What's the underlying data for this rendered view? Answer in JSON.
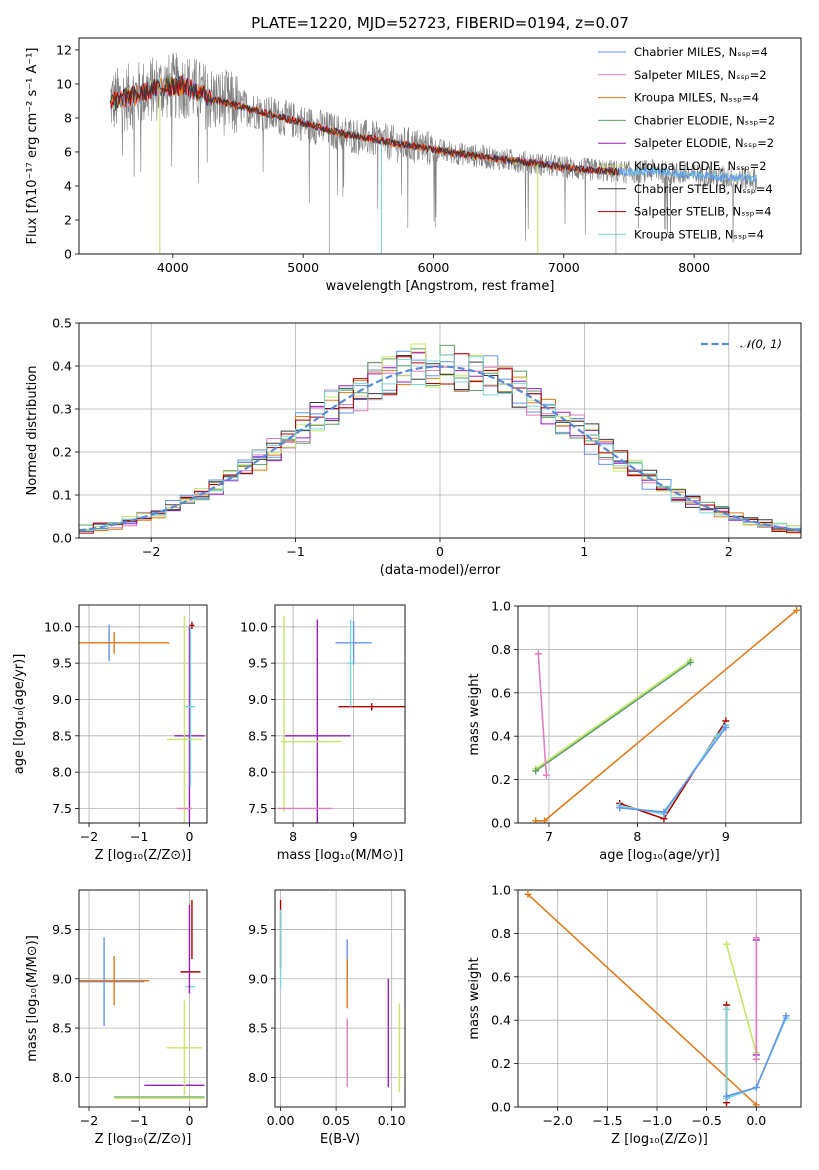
{
  "colors": {
    "chabrier_miles": "#6495ed",
    "salpeter_miles": "#e17fc0",
    "kroupa_miles": "#e07b1a",
    "chabrier_elodie": "#5aa066",
    "salpeter_elodie": "#9a1bc0",
    "kroupa_elodie": "#c8e66a",
    "chabrier_stelib": "#3a3a3a",
    "salpeter_stelib": "#b00000",
    "kroupa_stelib": "#78d8d8",
    "data": "#808080",
    "normal": "#5b8ad6"
  },
  "chart_data": [
    {
      "id": "spectrum",
      "type": "line",
      "title": "PLATE=1220, MJD=52723, FIBERID=0194, z=0.07",
      "xlabel": "wavelength [Angstrom, rest frame]",
      "ylabel": "Flux [fλ10⁻¹⁷ erg cm⁻² s⁻¹ A⁻¹]",
      "xlim": [
        3280,
        8820
      ],
      "ylim": [
        0,
        12.7
      ],
      "xticks": [
        4000,
        5000,
        6000,
        7000,
        8000
      ],
      "yticks": [
        0,
        2,
        4,
        6,
        8,
        10,
        12
      ],
      "grid": false,
      "legend": "top-right",
      "legend_entries": [
        "Chabrier MILES, Nₛₛₚ=4",
        "Salpeter MILES, Nₛₛₚ=2",
        "Kroupa MILES, Nₛₛₚ=4",
        "Chabrier ELODIE, Nₛₛₚ=2",
        "Salpeter ELODIE, Nₛₛₚ=2",
        "Kroupa ELODIE, Nₛₛₚ=2",
        "Chabrier STELIB, Nₛₛₚ=4",
        "Salpeter STELIB, Nₛₛₚ=4",
        "Kroupa STELIB, Nₛₛₚ=4"
      ],
      "continuum": {
        "x": [
          3550,
          3700,
          3900,
          4100,
          4300,
          4500,
          4700,
          4900,
          5100,
          5300,
          5500,
          5700,
          5900,
          6100,
          6300,
          6500,
          6700,
          6900,
          7100,
          7300,
          7500,
          7700,
          7900,
          8100,
          8300,
          8500
        ],
        "y": [
          9.0,
          9.3,
          9.8,
          9.9,
          9.1,
          8.7,
          8.3,
          7.9,
          7.5,
          7.1,
          6.8,
          6.5,
          6.3,
          6.0,
          5.8,
          5.6,
          5.4,
          5.2,
          5.0,
          4.9,
          4.8,
          4.9,
          4.7,
          4.6,
          4.5,
          4.4
        ]
      }
    },
    {
      "id": "residuals",
      "type": "bar",
      "xlabel": "(data-model)/error",
      "ylabel": "Normed distribution",
      "xlim": [
        -2.5,
        2.5
      ],
      "ylim": [
        0,
        0.5
      ],
      "xticks": [
        -2,
        -1,
        0,
        1,
        2
      ],
      "yticks": [
        0.0,
        0.1,
        0.2,
        0.3,
        0.4,
        0.5
      ],
      "grid": true,
      "legend": "top-right",
      "normal_label": "𝒩(0, 1)",
      "bin_width": 0.1
    },
    {
      "id": "age_vs_z",
      "type": "scatter",
      "xlabel": "Z [log₁₀(Z/Z⊙)]",
      "ylabel": "age  [log₁₀(age/yr)]",
      "xlim": [
        -2.2,
        0.35
      ],
      "ylim": [
        7.3,
        10.3
      ],
      "xticks": [
        -2,
        -1,
        0
      ],
      "yticks": [
        7.5,
        8.0,
        8.5,
        9.0,
        9.5,
        10.0
      ],
      "grid": true,
      "errorbars": [
        {
          "c": "chabrier_miles",
          "x": -1.6,
          "xerr": 0.4,
          "y": 9.78,
          "yerr": 0.25
        },
        {
          "c": "kroupa_miles",
          "x": -1.5,
          "xerr": 1.1,
          "y": 9.78,
          "yerr": 0.15
        },
        {
          "c": "salpeter_elodie",
          "x": 0.0,
          "xerr": 0.3,
          "y": 8.5,
          "yerr": 1.5
        },
        {
          "c": "kroupa_elodie",
          "x": -0.1,
          "xerr": 0.35,
          "y": 8.45,
          "yerr": 1.7
        },
        {
          "c": "kroupa_stelib",
          "x": 0.02,
          "xerr": 0.1,
          "y": 8.9,
          "yerr": 1.1
        },
        {
          "c": "salpeter_stelib",
          "x": 0.05,
          "xerr": 0.05,
          "y": 10.02,
          "yerr": 0.05
        },
        {
          "c": "salpeter_miles",
          "x": -0.1,
          "xerr": 0.15,
          "y": 7.5,
          "yerr": 0.0
        }
      ]
    },
    {
      "id": "age_vs_mass",
      "type": "scatter",
      "xlabel": "mass [log₁₀(M/M⊙)]",
      "xlim": [
        7.7,
        9.85
      ],
      "ylim": [
        7.3,
        10.3
      ],
      "xticks": [
        8,
        9
      ],
      "yticks": [
        7.5,
        8.0,
        8.5,
        9.0,
        9.5,
        10.0
      ],
      "grid": true,
      "errorbars": [
        {
          "c": "chabrier_miles",
          "x": 9.0,
          "xerr": 0.3,
          "y": 9.78,
          "yerr": 0.3
        },
        {
          "c": "salpeter_stelib",
          "x": 9.3,
          "xerr": 0.55,
          "y": 8.9,
          "yerr": 0.05
        },
        {
          "c": "kroupa_stelib",
          "x": 8.95,
          "xerr": 0.05,
          "y": 9.5,
          "yerr": 0.6
        },
        {
          "c": "salpeter_elodie",
          "x": 8.4,
          "xerr": 0.55,
          "y": 8.5,
          "yerr": 1.6
        },
        {
          "c": "kroupa_elodie",
          "x": 7.85,
          "xerr": 0.0,
          "y": 8.8,
          "yerr": 1.35
        },
        {
          "c": "kroupa_elodie",
          "x": 8.3,
          "xerr": 0.5,
          "y": 8.42,
          "yerr": 0.0
        },
        {
          "c": "salpeter_miles",
          "x": 8.2,
          "xerr": 0.45,
          "y": 7.5,
          "yerr": 0.0
        }
      ]
    },
    {
      "id": "weight_vs_age",
      "type": "line",
      "xlabel": "age  [log₁₀(age/yr)]",
      "ylabel": "mass weight",
      "xlim": [
        6.65,
        9.85
      ],
      "ylim": [
        0,
        1
      ],
      "xticks": [
        7,
        8,
        9
      ],
      "yticks": [
        0.0,
        0.2,
        0.4,
        0.6,
        0.8,
        1.0
      ],
      "grid": true,
      "series": [
        {
          "c": "kroupa_miles",
          "x": [
            6.85,
            6.95,
            9.8
          ],
          "y": [
            0.01,
            0.01,
            0.98
          ]
        },
        {
          "c": "kroupa_elodie",
          "x": [
            6.85,
            8.6
          ],
          "y": [
            0.25,
            0.75
          ]
        },
        {
          "c": "chabrier_elodie",
          "x": [
            6.85,
            8.6
          ],
          "y": [
            0.24,
            0.74
          ]
        },
        {
          "c": "salpeter_miles",
          "x": [
            6.88,
            6.97
          ],
          "y": [
            0.78,
            0.22
          ]
        },
        {
          "c": "salpeter_stelib",
          "x": [
            7.8,
            8.3,
            9.0
          ],
          "y": [
            0.09,
            0.02,
            0.47
          ]
        },
        {
          "c": "kroupa_stelib",
          "x": [
            7.8,
            8.3,
            8.9,
            9.0
          ],
          "y": [
            0.08,
            0.04,
            0.4,
            0.45
          ]
        },
        {
          "c": "chabrier_miles",
          "x": [
            7.8,
            8.3,
            9.0
          ],
          "y": [
            0.07,
            0.05,
            0.44
          ]
        }
      ]
    },
    {
      "id": "mass_vs_z",
      "type": "scatter",
      "xlabel": "Z [log₁₀(Z/Z⊙)]",
      "ylabel": "mass [log₁₀(M/M⊙)]",
      "xlim": [
        -2.2,
        0.35
      ],
      "ylim": [
        7.7,
        9.9
      ],
      "xticks": [
        -2,
        -1,
        0
      ],
      "yticks": [
        8.0,
        8.5,
        9.0,
        9.5
      ],
      "grid": true,
      "errorbars": [
        {
          "c": "chabrier_miles",
          "x": -1.7,
          "xerr": 0.8,
          "y": 8.97,
          "yerr": 0.45
        },
        {
          "c": "kroupa_miles",
          "x": -1.5,
          "xerr": 0.7,
          "y": 8.98,
          "yerr": 0.25
        },
        {
          "c": "salpeter_stelib",
          "x": 0.02,
          "xerr": 0.2,
          "y": 9.07,
          "yerr": 0.0
        },
        {
          "c": "salpeter_stelib",
          "x": 0.05,
          "xerr": 0.0,
          "y": 9.5,
          "yerr": 0.3
        },
        {
          "c": "kroupa_stelib",
          "x": 0.02,
          "xerr": 0.1,
          "y": 8.92,
          "yerr": 0.0
        },
        {
          "c": "salpeter_elodie",
          "x": -0.3,
          "xerr": 0.6,
          "y": 7.92,
          "yerr": 0.0
        },
        {
          "c": "salpeter_elodie",
          "x": 0.0,
          "xerr": 0.0,
          "y": 9.3,
          "yerr": 0.45
        },
        {
          "c": "kroupa_elodie",
          "x": -0.1,
          "xerr": 0.35,
          "y": 8.3,
          "yerr": 0.48
        },
        {
          "c": "chabrier_elodie",
          "x": -0.6,
          "xerr": 0.9,
          "y": 7.8,
          "yerr": 0.0
        },
        {
          "c": "kroupa_elodie",
          "x": -0.6,
          "xerr": 0.9,
          "y": 7.79,
          "yerr": 0.0
        }
      ]
    },
    {
      "id": "mass_vs_ebv",
      "type": "scatter",
      "xlabel": "E(B-V)",
      "xlim": [
        -0.005,
        0.112
      ],
      "ylim": [
        7.7,
        9.9
      ],
      "xticks": [
        0.0,
        0.05,
        0.1
      ],
      "xticklabels": [
        "0.00",
        "0.05",
        "0.10"
      ],
      "yticks": [
        8.0,
        8.5,
        9.0,
        9.5
      ],
      "grid": true,
      "errorbars": [
        {
          "c": "salpeter_stelib",
          "x": 0.0,
          "xerr": 0.0,
          "y": 9.45,
          "yerr": 0.35
        },
        {
          "c": "kroupa_stelib",
          "x": 0.0,
          "xerr": 0.0,
          "y": 9.3,
          "yerr": 0.4
        },
        {
          "c": "chabrier_miles",
          "x": 0.06,
          "xerr": 0.0,
          "y": 9.15,
          "yerr": 0.25
        },
        {
          "c": "kroupa_miles",
          "x": 0.06,
          "xerr": 0.0,
          "y": 8.95,
          "yerr": 0.25
        },
        {
          "c": "salpeter_miles",
          "x": 0.06,
          "xerr": 0.0,
          "y": 8.25,
          "yerr": 0.35
        },
        {
          "c": "salpeter_elodie",
          "x": 0.097,
          "xerr": 0.0,
          "y": 8.45,
          "yerr": 0.55
        },
        {
          "c": "kroupa_elodie",
          "x": 0.107,
          "xerr": 0.0,
          "y": 8.3,
          "yerr": 0.45
        }
      ]
    },
    {
      "id": "weight_vs_z",
      "type": "line",
      "xlabel": "Z [log₁₀(Z/Z⊙)]",
      "ylabel": "mass weight",
      "xlim": [
        -2.4,
        0.45
      ],
      "ylim": [
        0,
        1
      ],
      "xticks": [
        -2.0,
        -1.5,
        -1.0,
        -0.5,
        0.0
      ],
      "xticklabels": [
        "−2.0",
        "−1.5",
        "−1.0",
        "−0.5",
        "0.0"
      ],
      "yticks": [
        0.0,
        0.2,
        0.4,
        0.6,
        0.8,
        1.0
      ],
      "grid": true,
      "series": [
        {
          "c": "kroupa_miles",
          "x": [
            -2.3,
            0.0
          ],
          "y": [
            0.98,
            0.01
          ]
        },
        {
          "c": "kroupa_elodie",
          "x": [
            -0.3,
            0.0
          ],
          "y": [
            0.75,
            0.25
          ]
        },
        {
          "c": "salpeter_elodie",
          "x": [
            0.0,
            0.0
          ],
          "y": [
            0.77,
            0.24
          ]
        },
        {
          "c": "salpeter_miles",
          "x": [
            0.0,
            0.0
          ],
          "y": [
            0.78,
            0.22
          ]
        },
        {
          "c": "salpeter_stelib",
          "x": [
            -0.3,
            -0.3
          ],
          "y": [
            0.47,
            0.02
          ]
        },
        {
          "c": "kroupa_stelib",
          "x": [
            -0.3,
            -0.3,
            0.0,
            0.3
          ],
          "y": [
            0.45,
            0.04,
            0.09,
            0.41
          ]
        },
        {
          "c": "chabrier_miles",
          "x": [
            -0.3,
            0.0,
            0.3
          ],
          "y": [
            0.05,
            0.09,
            0.42
          ]
        }
      ]
    }
  ]
}
